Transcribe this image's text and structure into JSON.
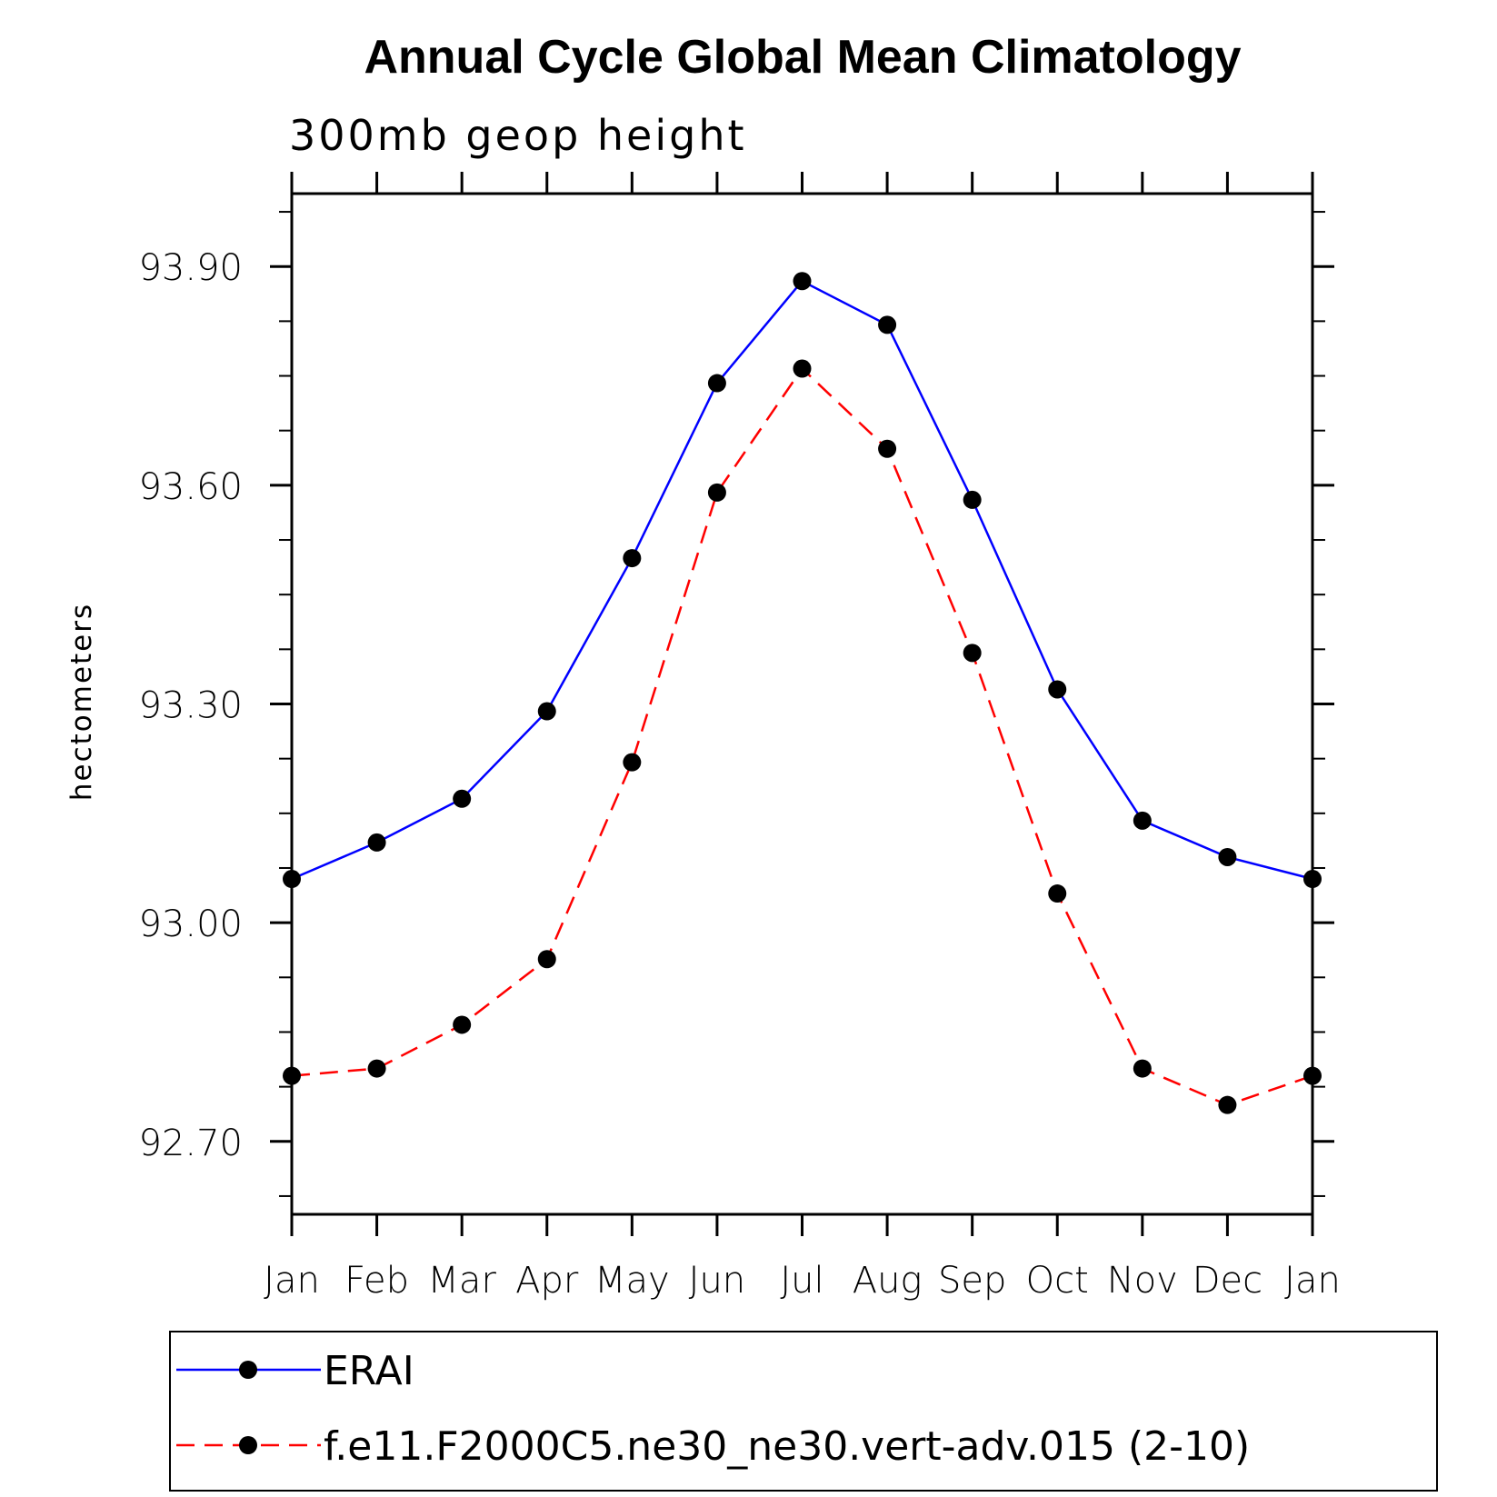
{
  "chart_data": {
    "type": "line",
    "title": "Annual Cycle Global Mean Climatology",
    "subtitle": "300mb geop height",
    "xlabel": "",
    "ylabel": "hectometers",
    "categories": [
      "Jan",
      "Feb",
      "Mar",
      "Apr",
      "May",
      "Jun",
      "Jul",
      "Aug",
      "Sep",
      "Oct",
      "Nov",
      "Dec",
      "Jan"
    ],
    "ylim": [
      92.6,
      94.0
    ],
    "yticks": [
      92.7,
      93.0,
      93.3,
      93.6,
      93.9
    ],
    "ytick_labels": [
      "92.70",
      "93.00",
      "93.30",
      "93.60",
      "93.90"
    ],
    "series": [
      {
        "name": "ERAI",
        "color": "#0000ff",
        "line_style": "solid",
        "marker": "filled-circle",
        "values": [
          93.06,
          93.11,
          93.17,
          93.29,
          93.5,
          93.74,
          93.88,
          93.82,
          93.58,
          93.32,
          93.14,
          93.09,
          93.06
        ]
      },
      {
        "name": "f.e11.F2000C5.ne30_ne30.vert-adv.015 (2-10)",
        "color": "#ff0000",
        "line_style": "dashed",
        "marker": "filled-circle",
        "values": [
          92.79,
          92.8,
          92.86,
          92.95,
          93.22,
          93.59,
          93.76,
          93.65,
          93.37,
          93.04,
          92.8,
          92.75,
          92.79
        ]
      }
    ],
    "legend": {
      "position": "bottom",
      "entries": [
        "ERAI",
        "f.e11.F2000C5.ne30_ne30.vert-adv.015 (2-10)"
      ]
    }
  }
}
